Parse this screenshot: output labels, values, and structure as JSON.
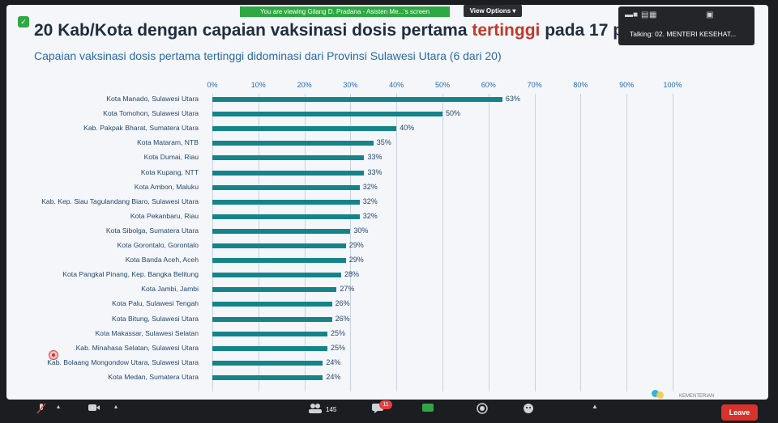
{
  "banner": {
    "text": "You are viewing Gilang D. Pradana - Asisten Me...'s screen"
  },
  "view_options": {
    "label": "View Options"
  },
  "slide": {
    "title_prefix": "20 Kab/Kota dengan capaian vaksinasi dosis pertama ",
    "title_highlight": "tertinggi",
    "title_suffix": " pada 17 p",
    "subtitle": "Capaian vaksinasi dosis pertama tertinggi didominasi dari Provinsi Sulawesi Utara (6 dari 20)"
  },
  "talking": {
    "label": "Talking: 02. MENTERI KESEHAT..."
  },
  "chart_data": {
    "type": "bar",
    "orientation": "horizontal",
    "xlim": [
      0,
      100
    ],
    "ticks": [
      "0%",
      "10%",
      "20%",
      "30%",
      "40%",
      "50%",
      "60%",
      "70%",
      "80%",
      "90%",
      "100%"
    ],
    "categories": [
      "Kota Manado, Sulawesi Utara",
      "Kota Tomohon, Sulawesi Utara",
      "Kab. Pakpak Bharat, Sumatera Utara",
      "Kota Mataram, NTB",
      "Kota Dumai, Riau",
      "Kota Kupang, NTT",
      "Kota Ambon, Maluku",
      "Kab. Kep. Siau Tagulandang  Biaro, Sulawesi Utara",
      "Kota Pekanbaru, Riau",
      "Kota Sibolga, Sumatera Utara",
      "Kota Gorontalo, Gorontalo",
      "Kota Banda Aceh, Aceh",
      "Kota Pangkal Pinang, Kep. Bangka Belitung",
      "Kota Jambi, Jambi",
      "Kota Palu, Sulawesi Tengah",
      "Kota Bitung, Sulawesi Utara",
      "Kota Makassar, Sulawesi Selatan",
      "Kab. Minahasa Selatan, Sulawesi Utara",
      "Kab. Bolaang Mongondow Utara, Sulawesi Utara",
      "Kota Medan, Sumatera Utara"
    ],
    "values": [
      63,
      50,
      40,
      35,
      33,
      33,
      32,
      32,
      32,
      30,
      29,
      29,
      28,
      27,
      26,
      26,
      25,
      25,
      24,
      24
    ],
    "value_labels": [
      "63%",
      "50%",
      "40%",
      "35%",
      "33%",
      "33%",
      "32%",
      "32%",
      "32%",
      "30%",
      "29%",
      "29%",
      "28%",
      "27%",
      "26%",
      "26%",
      "25%",
      "25%",
      "24%",
      "24%"
    ],
    "bar_color": "#14848a"
  },
  "logo": {
    "text": "KEMENTERIAN"
  },
  "toolbar": {
    "participants_count": "145",
    "chat_badge": "11",
    "leave_label": "Leave"
  }
}
